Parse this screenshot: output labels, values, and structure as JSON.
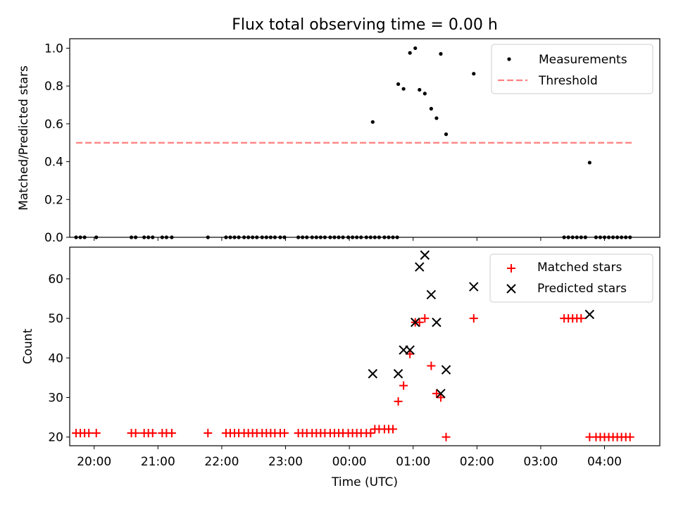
{
  "title": "Flux total observing time = 0.00 h",
  "colors": {
    "measurements": "#000000",
    "threshold": "#ff7f7f",
    "matched": "#ff0000",
    "predicted": "#000000"
  },
  "chart_data": [
    {
      "type": "scatter",
      "ylabel": "Matched/Predicted stars",
      "xlabel": "",
      "xlim": [
        "19:37",
        "04:52"
      ],
      "ylim": [
        0,
        1.05
      ],
      "yticks": [
        "0.0",
        "0.2",
        "0.4",
        "0.6",
        "0.8",
        "1.0"
      ],
      "legend_position": "upper right",
      "threshold": {
        "name": "Threshold",
        "value": 0.5,
        "x_start": "19:43",
        "x_end": "04:26",
        "style": "dashed"
      },
      "series": [
        {
          "name": "Measurements",
          "marker": "dot",
          "points": [
            [
              "19:43",
              0
            ],
            [
              "19:47",
              0
            ],
            [
              "19:51",
              0
            ],
            [
              "20:02",
              0
            ],
            [
              "20:35",
              0
            ],
            [
              "20:39",
              0
            ],
            [
              "20:47",
              0
            ],
            [
              "20:51",
              0
            ],
            [
              "20:55",
              0
            ],
            [
              "21:04",
              0
            ],
            [
              "21:08",
              0
            ],
            [
              "21:13",
              0
            ],
            [
              "21:47",
              0
            ],
            [
              "22:04",
              0
            ],
            [
              "22:08",
              0
            ],
            [
              "22:12",
              0
            ],
            [
              "22:16",
              0
            ],
            [
              "22:21",
              0
            ],
            [
              "22:25",
              0
            ],
            [
              "22:29",
              0
            ],
            [
              "22:33",
              0
            ],
            [
              "22:38",
              0
            ],
            [
              "22:42",
              0
            ],
            [
              "22:46",
              0
            ],
            [
              "22:50",
              0
            ],
            [
              "22:55",
              0
            ],
            [
              "22:59",
              0
            ],
            [
              "23:12",
              0
            ],
            [
              "23:16",
              0
            ],
            [
              "23:20",
              0
            ],
            [
              "23:25",
              0
            ],
            [
              "23:29",
              0
            ],
            [
              "23:33",
              0
            ],
            [
              "23:37",
              0
            ],
            [
              "23:42",
              0
            ],
            [
              "23:46",
              0
            ],
            [
              "23:50",
              0
            ],
            [
              "23:54",
              0
            ],
            [
              "23:59",
              0
            ],
            [
              "00:03",
              0
            ],
            [
              "00:07",
              0
            ],
            [
              "00:11",
              0
            ],
            [
              "00:16",
              0
            ],
            [
              "00:20",
              0
            ],
            [
              "00:24",
              0
            ],
            [
              "00:28",
              0
            ],
            [
              "00:33",
              0
            ],
            [
              "00:37",
              0
            ],
            [
              "00:41",
              0
            ],
            [
              "00:45",
              0
            ],
            [
              "00:22",
              0.61
            ],
            [
              "00:46",
              0.81
            ],
            [
              "00:51",
              0.785
            ],
            [
              "00:57",
              0.975
            ],
            [
              "01:02",
              1.0
            ],
            [
              "01:06",
              0.78
            ],
            [
              "01:11",
              0.76
            ],
            [
              "01:17",
              0.68
            ],
            [
              "01:22",
              0.63
            ],
            [
              "01:26",
              0.97
            ],
            [
              "01:31",
              0.545
            ],
            [
              "01:57",
              0.865
            ],
            [
              "03:46",
              0.395
            ],
            [
              "03:22",
              0
            ],
            [
              "03:26",
              0
            ],
            [
              "03:30",
              0
            ],
            [
              "03:34",
              0
            ],
            [
              "03:38",
              0
            ],
            [
              "03:42",
              0
            ],
            [
              "03:52",
              0
            ],
            [
              "03:56",
              0
            ],
            [
              "04:00",
              0
            ],
            [
              "04:04",
              0
            ],
            [
              "04:08",
              0
            ],
            [
              "04:12",
              0
            ],
            [
              "04:16",
              0
            ],
            [
              "04:20",
              0
            ],
            [
              "04:24",
              0
            ]
          ]
        }
      ]
    },
    {
      "type": "scatter",
      "ylabel": "Count",
      "xlabel": "Time (UTC)",
      "xlim": [
        "19:37",
        "04:52"
      ],
      "ylim": [
        17.8,
        68
      ],
      "yticks": [
        "20",
        "30",
        "40",
        "50",
        "60"
      ],
      "xticks": [
        "20:00",
        "21:00",
        "22:00",
        "23:00",
        "00:00",
        "01:00",
        "02:00",
        "03:00",
        "04:00"
      ],
      "legend_position": "upper right",
      "series": [
        {
          "name": "Matched stars",
          "marker": "plus",
          "points": [
            [
              "19:43",
              21
            ],
            [
              "19:47",
              21
            ],
            [
              "19:51",
              21
            ],
            [
              "19:55",
              21
            ],
            [
              "20:02",
              21
            ],
            [
              "20:35",
              21
            ],
            [
              "20:39",
              21
            ],
            [
              "20:47",
              21
            ],
            [
              "20:51",
              21
            ],
            [
              "20:55",
              21
            ],
            [
              "21:04",
              21
            ],
            [
              "21:08",
              21
            ],
            [
              "21:13",
              21
            ],
            [
              "21:47",
              21
            ],
            [
              "22:04",
              21
            ],
            [
              "22:08",
              21
            ],
            [
              "22:12",
              21
            ],
            [
              "22:16",
              21
            ],
            [
              "22:21",
              21
            ],
            [
              "22:25",
              21
            ],
            [
              "22:29",
              21
            ],
            [
              "22:33",
              21
            ],
            [
              "22:38",
              21
            ],
            [
              "22:42",
              21
            ],
            [
              "22:46",
              21
            ],
            [
              "22:50",
              21
            ],
            [
              "22:55",
              21
            ],
            [
              "22:59",
              21
            ],
            [
              "23:12",
              21
            ],
            [
              "23:16",
              21
            ],
            [
              "23:20",
              21
            ],
            [
              "23:25",
              21
            ],
            [
              "23:29",
              21
            ],
            [
              "23:33",
              21
            ],
            [
              "23:37",
              21
            ],
            [
              "23:42",
              21
            ],
            [
              "23:46",
              21
            ],
            [
              "23:50",
              21
            ],
            [
              "23:54",
              21
            ],
            [
              "23:59",
              21
            ],
            [
              "00:03",
              21
            ],
            [
              "00:07",
              21
            ],
            [
              "00:11",
              21
            ],
            [
              "00:16",
              21
            ],
            [
              "00:20",
              21
            ],
            [
              "00:24",
              22
            ],
            [
              "00:28",
              22
            ],
            [
              "00:33",
              22
            ],
            [
              "00:37",
              22
            ],
            [
              "00:41",
              22
            ],
            [
              "00:46",
              29
            ],
            [
              "00:51",
              33
            ],
            [
              "00:57",
              41
            ],
            [
              "01:02",
              49
            ],
            [
              "01:06",
              49
            ],
            [
              "01:11",
              50
            ],
            [
              "01:17",
              38
            ],
            [
              "01:22",
              31
            ],
            [
              "01:26",
              30
            ],
            [
              "01:31",
              20
            ],
            [
              "01:57",
              50
            ],
            [
              "03:22",
              50
            ],
            [
              "03:26",
              50
            ],
            [
              "03:30",
              50
            ],
            [
              "03:34",
              50
            ],
            [
              "03:38",
              50
            ],
            [
              "03:46",
              20
            ],
            [
              "03:52",
              20
            ],
            [
              "03:56",
              20
            ],
            [
              "04:00",
              20
            ],
            [
              "04:04",
              20
            ],
            [
              "04:08",
              20
            ],
            [
              "04:12",
              20
            ],
            [
              "04:16",
              20
            ],
            [
              "04:20",
              20
            ],
            [
              "04:24",
              20
            ]
          ]
        },
        {
          "name": "Predicted stars",
          "marker": "x",
          "points": [
            [
              "00:22",
              36
            ],
            [
              "00:46",
              36
            ],
            [
              "00:51",
              42
            ],
            [
              "00:57",
              42
            ],
            [
              "01:02",
              49
            ],
            [
              "01:06",
              63
            ],
            [
              "01:11",
              66
            ],
            [
              "01:17",
              56
            ],
            [
              "01:22",
              49
            ],
            [
              "01:26",
              31
            ],
            [
              "01:31",
              37
            ],
            [
              "01:57",
              58
            ],
            [
              "03:46",
              51
            ]
          ]
        }
      ]
    }
  ]
}
